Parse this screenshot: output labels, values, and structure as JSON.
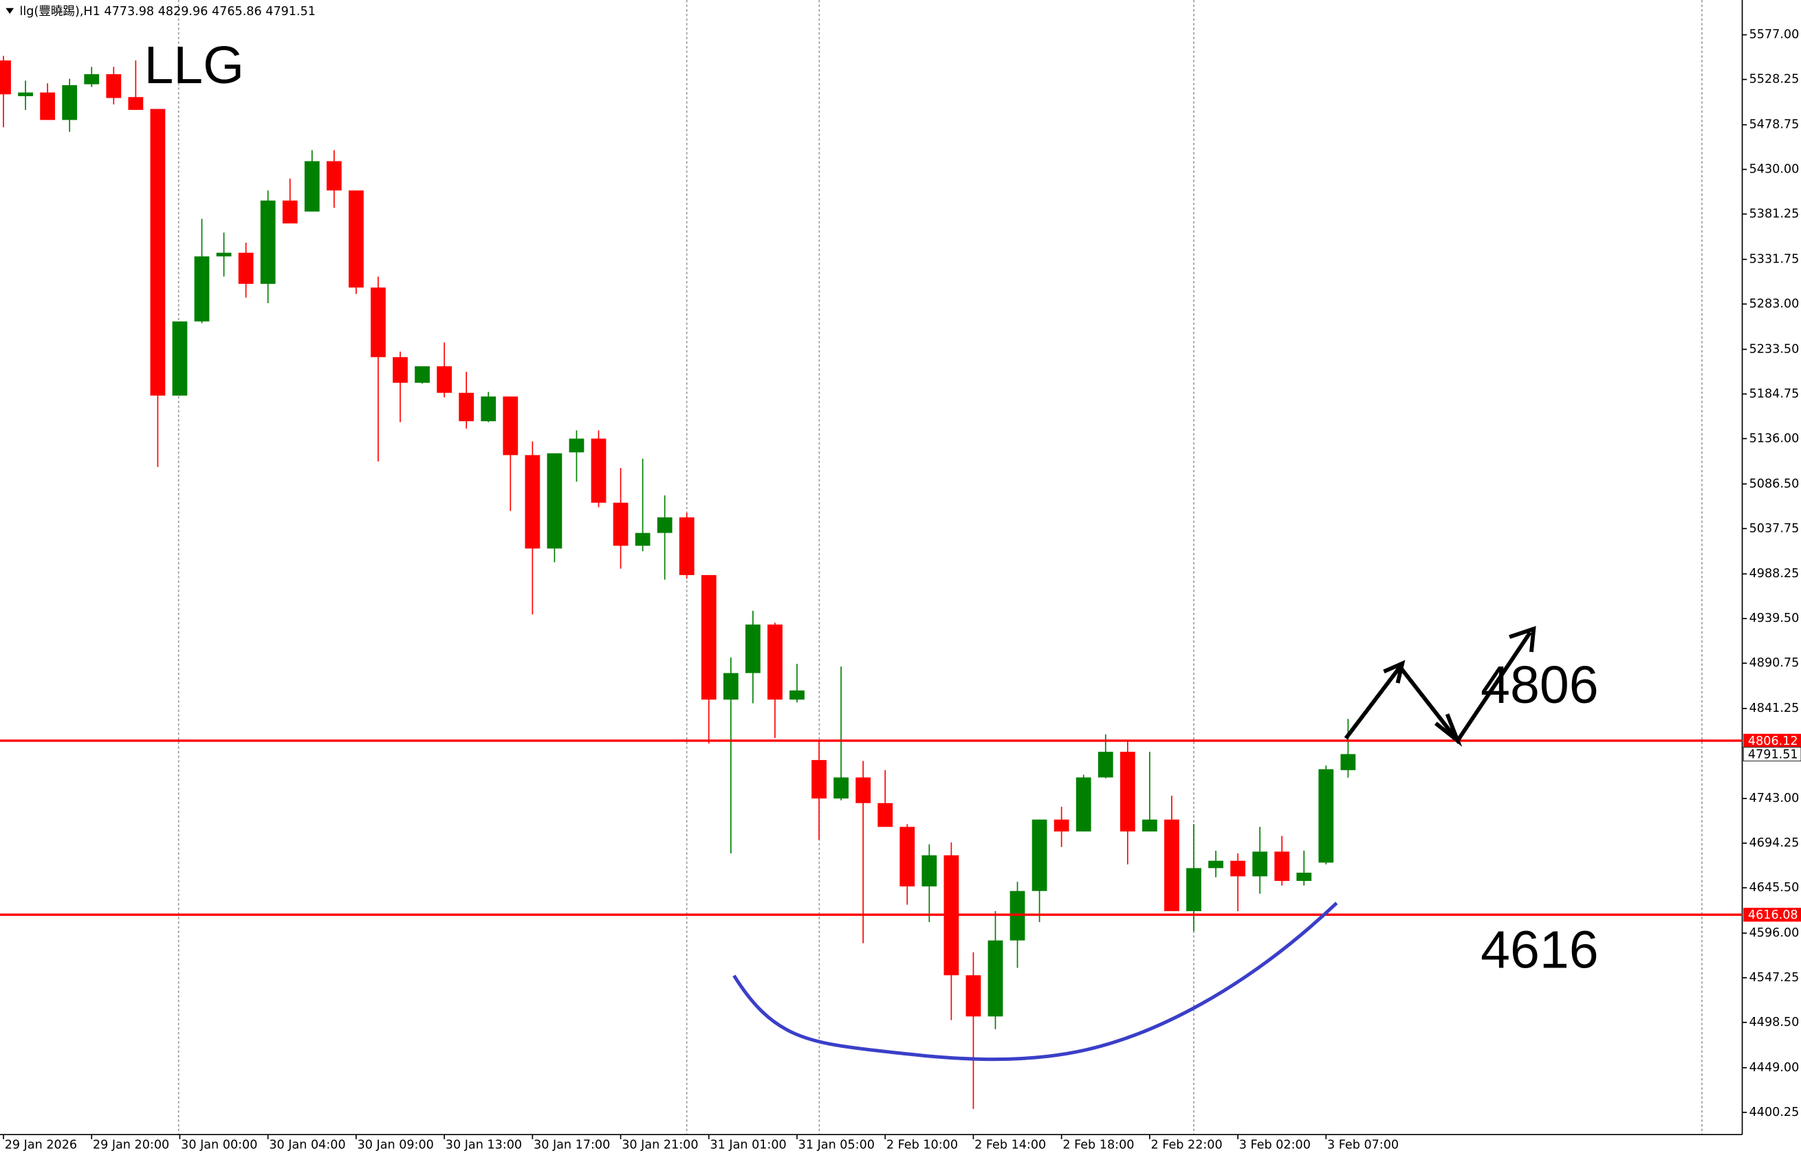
{
  "chart_data": {
    "type": "candlestick",
    "title": "llg(豐曉踢),H1",
    "categories": [
      "29 Jan 2026",
      null,
      null,
      null,
      "29 Jan 20:00",
      null,
      null,
      null,
      "30 Jan 00:00",
      null,
      null,
      null,
      "30 Jan 04:00",
      null,
      null,
      null,
      "30 Jan 09:00",
      null,
      null,
      null,
      "30 Jan 13:00",
      null,
      null,
      null,
      "30 Jan 17:00",
      null,
      null,
      null,
      "30 Jan 21:00",
      null,
      null,
      null,
      "31 Jan 01:00",
      null,
      null,
      null,
      "31 Jan 05:00",
      null,
      null,
      null,
      "2 Feb 10:00",
      null,
      null,
      null,
      "2 Feb 14:00",
      null,
      null,
      null,
      "2 Feb 18:00",
      null,
      null,
      null,
      "2 Feb 22:00",
      null,
      null,
      null,
      "3 Feb 02:00",
      null,
      null,
      null,
      "3 Feb 07:00",
      null
    ],
    "open": [
      5549,
      5510,
      5514,
      5484,
      5523,
      5534,
      5509,
      5496,
      5183,
      5264,
      5335,
      5339,
      5305,
      5396,
      5384,
      5439,
      5407,
      5301,
      5225,
      5197,
      5215,
      5186,
      5155,
      5182,
      5118,
      5016,
      5121,
      5136,
      5066,
      5019,
      5033,
      5050,
      4987,
      4851,
      4880,
      4933,
      4851,
      4785,
      4743,
      4766,
      4738,
      4712,
      4647,
      4681,
      4550,
      4505,
      4588,
      4642,
      4720,
      4707,
      4766,
      4794,
      4707,
      4720,
      4620,
      4667,
      4675,
      4658,
      4685,
      4653,
      4673,
      4773.98
    ],
    "high": [
      5554,
      5527,
      5524,
      5529,
      5542,
      5542,
      5549,
      5496,
      5264,
      5376,
      5361,
      5350,
      5407,
      5420,
      5451,
      5451,
      5407,
      5313,
      5231,
      5215,
      5241,
      5209,
      5187,
      5182,
      5133,
      5120,
      5145,
      5145,
      5104,
      5114,
      5074,
      5055,
      4987,
      4897,
      4948,
      4935,
      4890,
      4805,
      4887,
      4784,
      4774,
      4715,
      4693,
      4695,
      4575,
      4620,
      4652,
      4720,
      4734,
      4769,
      4813,
      4805,
      4794,
      4746,
      4715,
      4686,
      4683,
      4712,
      4702,
      4686,
      4779,
      4829.96
    ],
    "low": [
      5476,
      5495,
      5484,
      5471,
      5520,
      5501,
      5495,
      5105,
      5183,
      5262,
      5313,
      5290,
      5284,
      5371,
      5384,
      5388,
      5294,
      5111,
      5154,
      5196,
      5181,
      5147,
      5154,
      5057,
      4944,
      5001,
      5089,
      5061,
      4994,
      5013,
      4982,
      4983,
      4803,
      4683,
      4847,
      4809,
      4848,
      4698,
      4741,
      4585,
      4712,
      4627,
      4608,
      4501,
      4404,
      4491,
      4558,
      4608,
      4690,
      4707,
      4765,
      4671,
      4707,
      4620,
      4598,
      4657,
      4620,
      4639,
      4648,
      4648,
      4671,
      4765.86
    ],
    "close": [
      5512,
      5514,
      5484,
      5522,
      5534,
      5508,
      5495,
      5183,
      5264,
      5335,
      5339,
      5305,
      5396,
      5371,
      5439,
      5407,
      5301,
      5225,
      5197,
      5215,
      5186,
      5155,
      5182,
      5118,
      5016,
      5120,
      5136,
      5066,
      5019,
      5033,
      5050,
      4987,
      4851,
      4880,
      4933,
      4851,
      4861,
      4743,
      4766,
      4738,
      4712,
      4647,
      4681,
      4550,
      4505,
      4588,
      4642,
      4720,
      4707,
      4766,
      4794,
      4707,
      4720,
      4620,
      4667,
      4675,
      4658,
      4685,
      4653,
      4662,
      4775,
      4791.51
    ],
    "up_color": "#008000",
    "down_color": "#ff0000",
    "ylim": [
      4376,
      5615
    ],
    "yticks": [
      {
        "value": 5577,
        "label": "5577.00"
      },
      {
        "value": 5528.25,
        "label": "5528.25"
      },
      {
        "value": 5478.75,
        "label": "5478.75"
      },
      {
        "value": 5430,
        "label": "5430.00"
      },
      {
        "value": 5381.25,
        "label": "5381.25"
      },
      {
        "value": 5331.75,
        "label": "5331.75"
      },
      {
        "value": 5283,
        "label": "5283.00"
      },
      {
        "value": 5233.5,
        "label": "5233.50"
      },
      {
        "value": 5184.75,
        "label": "5184.75"
      },
      {
        "value": 5136,
        "label": "5136.00"
      },
      {
        "value": 5086.5,
        "label": "5086.50"
      },
      {
        "value": 5037.75,
        "label": "5037.75"
      },
      {
        "value": 4988.25,
        "label": "4988.25"
      },
      {
        "value": 4939.5,
        "label": "4939.50"
      },
      {
        "value": 4890.75,
        "label": "4890.75"
      },
      {
        "value": 4841.25,
        "label": "4841.25"
      },
      {
        "value": 4743,
        "label": "4743.00"
      },
      {
        "value": 4694.25,
        "label": "4694.25"
      },
      {
        "value": 4645.5,
        "label": "4645.50"
      },
      {
        "value": 4596,
        "label": "4596.00"
      },
      {
        "value": 4547.25,
        "label": "4547.25"
      },
      {
        "value": 4498.5,
        "label": "4498.50"
      },
      {
        "value": 4449,
        "label": "4449.00"
      },
      {
        "value": 4400.25,
        "label": "4400.25"
      }
    ],
    "levels": [
      4806.12,
      4616.08
    ],
    "level_color": "#ff0000",
    "annotations": [
      "LLG",
      "4806",
      "4616"
    ]
  }
}
